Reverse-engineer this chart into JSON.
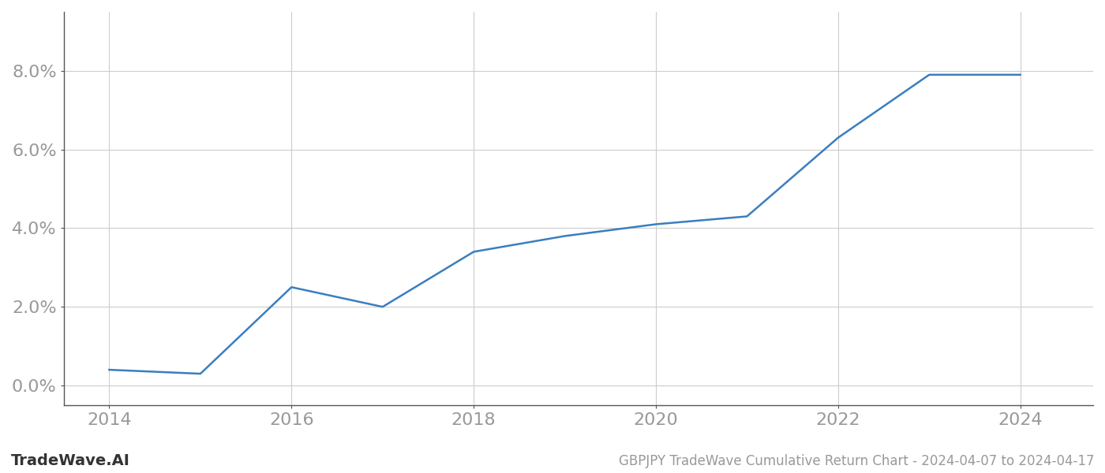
{
  "years": [
    2014,
    2015,
    2016,
    2017,
    2018,
    2019,
    2020,
    2021,
    2022,
    2023,
    2024
  ],
  "values": [
    0.004,
    0.003,
    0.025,
    0.02,
    0.034,
    0.038,
    0.041,
    0.043,
    0.063,
    0.079,
    0.079
  ],
  "line_color": "#3a7ebf",
  "line_width": 1.8,
  "title": "GBPJPY TradeWave Cumulative Return Chart - 2024-04-07 to 2024-04-17",
  "xlim": [
    2013.5,
    2024.8
  ],
  "ylim": [
    -0.005,
    0.095
  ],
  "yticks": [
    0.0,
    0.02,
    0.04,
    0.06,
    0.08
  ],
  "xticks": [
    2014,
    2016,
    2018,
    2020,
    2022,
    2024
  ],
  "background_color": "#ffffff",
  "grid_color": "#cccccc",
  "watermark": "TradeWave.AI",
  "title_fontsize": 12,
  "tick_fontsize": 16,
  "watermark_fontsize": 14,
  "tick_color": "#999999",
  "spine_color": "#555555"
}
